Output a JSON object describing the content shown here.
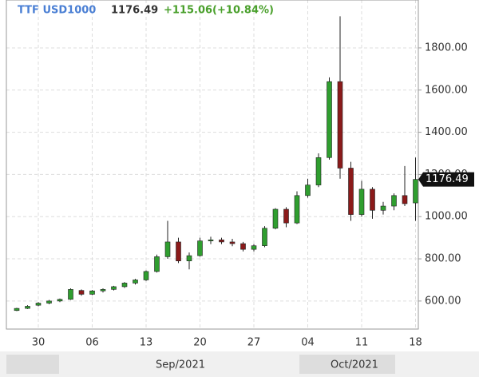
{
  "chart_data": {
    "type": "candlestick",
    "instrument": "TTF USD1000",
    "change": "+115.06(+10.84%)",
    "categories": [
      null,
      null,
      "30",
      null,
      null,
      null,
      null,
      "06",
      null,
      null,
      null,
      null,
      "13",
      null,
      null,
      null,
      null,
      "20",
      null,
      null,
      null,
      null,
      "27",
      null,
      null,
      null,
      null,
      "04",
      null,
      null,
      null,
      null,
      "11",
      null,
      null,
      null,
      null,
      "18"
    ],
    "month_labels": [
      "Sep/2021",
      "Oct/2021"
    ],
    "open": [
      555,
      565,
      580,
      590,
      600,
      608,
      650,
      632,
      648,
      655,
      668,
      685,
      700,
      740,
      810,
      880,
      790,
      815,
      885,
      890,
      880,
      872,
      845,
      862,
      945,
      1035,
      970,
      1100,
      1150,
      1280,
      1640,
      1230,
      1010,
      1130,
      1030,
      1050,
      1100,
      1065
    ],
    "high": [
      568,
      580,
      595,
      605,
      612,
      660,
      655,
      652,
      660,
      672,
      690,
      705,
      745,
      820,
      980,
      900,
      830,
      900,
      905,
      900,
      895,
      880,
      870,
      955,
      1040,
      1045,
      1120,
      1180,
      1300,
      1660,
      1950,
      1260,
      1170,
      1140,
      1070,
      1110,
      1240,
      1280
    ],
    "low": [
      552,
      562,
      575,
      585,
      595,
      605,
      625,
      628,
      640,
      650,
      662,
      678,
      695,
      735,
      800,
      780,
      750,
      810,
      870,
      870,
      860,
      835,
      835,
      855,
      940,
      950,
      965,
      1090,
      1140,
      1270,
      1180,
      980,
      1000,
      990,
      1010,
      1030,
      1050,
      980
    ],
    "close": [
      565,
      575,
      590,
      600,
      608,
      655,
      632,
      648,
      655,
      668,
      685,
      700,
      740,
      810,
      880,
      790,
      815,
      885,
      890,
      880,
      872,
      845,
      862,
      945,
      1035,
      970,
      1100,
      1150,
      1280,
      1640,
      1230,
      1010,
      1130,
      1030,
      1050,
      1100,
      1061.43,
      1176.49
    ],
    "up_color": "#2f9e2f",
    "down_color": "#8b1a1a",
    "ylim": [
      467,
      2027
    ],
    "yticks": [
      {
        "value": 600,
        "label": "600.00"
      },
      {
        "value": 800,
        "label": "800.00"
      },
      {
        "value": 1000,
        "label": "1000.00"
      },
      {
        "value": 1200,
        "label": "1200.00"
      },
      {
        "value": 1400,
        "label": "1400.00"
      },
      {
        "value": 1600,
        "label": "1600.00"
      },
      {
        "value": 1800,
        "label": "1800.00"
      }
    ],
    "grid": true
  }
}
